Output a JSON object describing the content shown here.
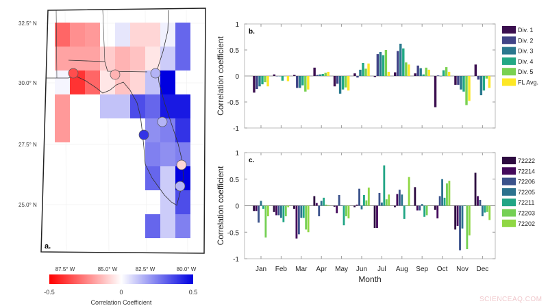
{
  "chart_data": [
    {
      "type": "heatmap",
      "panel_label": "a.",
      "lat_labels": [
        "32.5° N",
        "30.0° N",
        "27.5° N",
        "25.0° N"
      ],
      "lon_labels": [
        "87.5° W",
        "85.0° W",
        "82.5° W",
        "80.0° W"
      ],
      "colorbar": {
        "label": "Correlation Coefficient",
        "ticks": [
          "-0.5",
          "0",
          "0.5"
        ],
        "range": [
          -0.5,
          0.5
        ],
        "low_color": "#ff0000",
        "mid_color": "#ffffff",
        "high_color": "#0000e0"
      },
      "grid_values": [
        [
          -0.3,
          -0.22,
          -0.2,
          null,
          0.05,
          -0.08,
          -0.08,
          0.03,
          0.3
        ],
        [
          -0.18,
          -0.18,
          -0.18,
          -0.1,
          -0.15,
          -0.12,
          -0.05,
          0.1,
          0.3
        ],
        [
          0.02,
          -0.4,
          -0.3,
          -0.05,
          -0.12,
          -0.08,
          0.12,
          0.5,
          null
        ],
        [
          -0.2,
          null,
          null,
          0.12,
          0.12,
          0.35,
          0.3,
          0.45,
          0.45
        ],
        [
          -0.2,
          null,
          null,
          null,
          null,
          null,
          0.22,
          0.25,
          0.4
        ],
        [
          null,
          null,
          null,
          null,
          null,
          null,
          0.25,
          0.22,
          0.25
        ],
        [
          null,
          null,
          null,
          null,
          null,
          null,
          0.3,
          0.1,
          0.5
        ],
        [
          null,
          null,
          null,
          null,
          null,
          null,
          null,
          0.1,
          0.35
        ],
        [
          null,
          null,
          null,
          null,
          null,
          null,
          0.3,
          0.1,
          0.25
        ]
      ],
      "stations": [
        -0.35,
        -0.15,
        0.15,
        0.15,
        0.4,
        -0.08,
        0.15
      ]
    },
    {
      "type": "bar",
      "panel_label": "b.",
      "ylabel": "Correlation coefficient",
      "ylim": [
        -1,
        1
      ],
      "yticks": [
        "1",
        "0.5",
        "0",
        "-0.5",
        "-1"
      ],
      "categories": [
        "Jan",
        "Feb",
        "Mar",
        "Apr",
        "May",
        "Jun",
        "Jul",
        "Aug",
        "Sep",
        "Oct",
        "Nov",
        "Dec"
      ],
      "show_tick_labels": false,
      "series": [
        {
          "name": "Div. 1",
          "color": "#3b0f4f",
          "values": [
            -0.32,
            0.03,
            0.02,
            0.16,
            -0.2,
            0.05,
            -0.02,
            0.07,
            0.05,
            -0.6,
            -0.17,
            0.22
          ]
        },
        {
          "name": "Div. 2",
          "color": "#414487",
          "values": [
            -0.25,
            0,
            -0.23,
            0.02,
            -0.15,
            -0.03,
            0.42,
            0.48,
            0.2,
            0.01,
            -0.17,
            -0.07
          ]
        },
        {
          "name": "Div. 3",
          "color": "#2a788e",
          "values": [
            -0.2,
            0,
            -0.23,
            0.03,
            -0.34,
            0.12,
            0.46,
            0.62,
            0.15,
            0,
            -0.26,
            -0.37
          ]
        },
        {
          "name": "Div. 4",
          "color": "#22a884",
          "values": [
            -0.16,
            -0.09,
            -0.18,
            0.04,
            -0.26,
            0.25,
            0.4,
            0.53,
            0.03,
            0.11,
            -0.3,
            -0.28
          ]
        },
        {
          "name": "Div. 5",
          "color": "#7ad151",
          "values": [
            -0.12,
            0,
            -0.3,
            0.06,
            -0.22,
            0.14,
            0.5,
            0.26,
            0.16,
            0.17,
            -0.56,
            -0.05
          ]
        },
        {
          "name": "FL Avg.",
          "color": "#fde725",
          "values": [
            -0.2,
            -0.1,
            -0.26,
            0.08,
            -0.28,
            0.24,
            0.08,
            0.22,
            0.12,
            0.08,
            -0.48,
            -0.23
          ]
        }
      ]
    },
    {
      "type": "bar",
      "panel_label": "c.",
      "ylabel": "Correlation coefficient",
      "xlabel": "Month",
      "ylim": [
        -1,
        1
      ],
      "yticks": [
        "1",
        "0.5",
        "0",
        "-0.5",
        "-1"
      ],
      "categories": [
        "Jan",
        "Feb",
        "Mar",
        "Apr",
        "May",
        "Jun",
        "Jul",
        "Aug",
        "Sep",
        "Oct",
        "Nov",
        "Dec"
      ],
      "show_tick_labels": true,
      "series": [
        {
          "name": "72222",
          "color": "#2d0b40",
          "values": [
            -0.1,
            -0.12,
            -0.06,
            0.18,
            -0.02,
            -0.03,
            -0.42,
            -0.03,
            0.35,
            -0.08,
            -0.45,
            0.62
          ]
        },
        {
          "name": "72214",
          "color": "#440a5c",
          "values": [
            -0.1,
            -0.18,
            -0.62,
            0.05,
            -0.14,
            0.02,
            -0.42,
            0.22,
            -0.09,
            -0.24,
            -0.38,
            0.18
          ]
        },
        {
          "name": "72206",
          "color": "#3b528b",
          "values": [
            -0.32,
            -0.18,
            -0.54,
            -0.2,
            0.2,
            0.32,
            0.24,
            0.3,
            -0.09,
            0.18,
            -0.84,
            0.11
          ]
        },
        {
          "name": "72205",
          "color": "#2c728e",
          "values": [
            0.09,
            -0.23,
            -0.23,
            0.09,
            0,
            -0.07,
            0.06,
            0.21,
            0.03,
            0.5,
            -0.43,
            -0.2
          ]
        },
        {
          "name": "72211",
          "color": "#21a585",
          "values": [
            -0.06,
            -0.31,
            -0.23,
            0.15,
            -0.37,
            0.2,
            0.76,
            -0.25,
            -0.21,
            0.15,
            0,
            -0.13
          ]
        },
        {
          "name": "72203",
          "color": "#75d054",
          "values": [
            -0.6,
            -0.2,
            -0.45,
            0.02,
            -0.2,
            0.1,
            0.12,
            0,
            -0.18,
            0.42,
            -0.82,
            -0.12
          ]
        },
        {
          "name": "72202",
          "color": "#8fd744",
          "values": [
            -0.2,
            -0.03,
            -0.5,
            0.01,
            -0.24,
            0.34,
            0.21,
            0.54,
            0,
            0.47,
            -0.56,
            -0.27
          ]
        }
      ]
    }
  ],
  "watermark": "SCIENCEAQ.COM"
}
